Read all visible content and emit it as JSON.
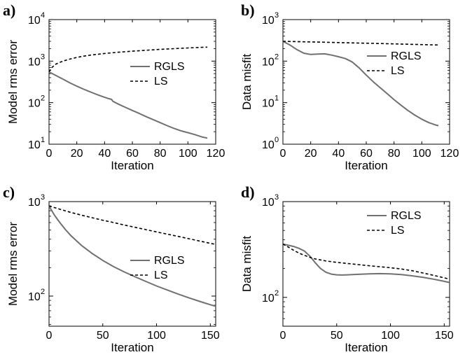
{
  "chart_data": [
    {
      "panel_label": "a)",
      "type": "line",
      "xlabel": "Iteration",
      "ylabel": "Model rms error",
      "xlim": [
        0,
        120
      ],
      "ylim": [
        10,
        10000
      ],
      "yscale": "log",
      "xticks": [
        0,
        20,
        40,
        60,
        80,
        100,
        120
      ],
      "yticks": [
        {
          "v": 10,
          "base": "10",
          "exp": "1"
        },
        {
          "v": 100,
          "base": "10",
          "exp": "2"
        },
        {
          "v": 1000,
          "base": "10",
          "exp": "3"
        },
        {
          "v": 10000,
          "base": "10",
          "exp": "4"
        }
      ],
      "legend": "right",
      "series": [
        {
          "name": "RGLS",
          "style": "solid",
          "color": "#707070",
          "x": [
            0,
            5,
            10,
            15,
            20,
            25,
            30,
            35,
            40,
            43,
            45,
            46,
            50,
            55,
            60,
            65,
            70,
            75,
            80,
            85,
            90,
            95,
            100,
            105,
            110,
            114
          ],
          "y": [
            550,
            450,
            370,
            300,
            250,
            210,
            180,
            155,
            135,
            125,
            120,
            108,
            92,
            77,
            65,
            55,
            46,
            39,
            33,
            28,
            24,
            21,
            19,
            17,
            15,
            14
          ]
        },
        {
          "name": "LS",
          "style": "dashed",
          "color": "#000000",
          "x": [
            0,
            2,
            5,
            10,
            15,
            20,
            25,
            30,
            40,
            50,
            60,
            70,
            80,
            90,
            100,
            110,
            114
          ],
          "y": [
            550,
            700,
            850,
            1000,
            1120,
            1230,
            1320,
            1400,
            1530,
            1640,
            1740,
            1830,
            1920,
            2000,
            2080,
            2150,
            2180
          ]
        }
      ]
    },
    {
      "panel_label": "b)",
      "type": "line",
      "xlabel": "Iteration",
      "ylabel": "Data misfit",
      "xlim": [
        0,
        120
      ],
      "ylim": [
        1,
        1000
      ],
      "yscale": "log",
      "xticks": [
        0,
        20,
        40,
        60,
        80,
        100,
        120
      ],
      "yticks": [
        {
          "v": 1,
          "base": "10",
          "exp": "0"
        },
        {
          "v": 10,
          "base": "10",
          "exp": "1"
        },
        {
          "v": 100,
          "base": "10",
          "exp": "2"
        },
        {
          "v": 1000,
          "base": "10",
          "exp": "3"
        }
      ],
      "legend": "right",
      "series": [
        {
          "name": "RGLS",
          "style": "solid",
          "color": "#707070",
          "x": [
            0,
            5,
            10,
            15,
            20,
            25,
            30,
            35,
            40,
            45,
            50,
            55,
            60,
            65,
            70,
            75,
            80,
            85,
            90,
            95,
            100,
            105,
            110,
            112
          ],
          "y": [
            300,
            245,
            190,
            155,
            145,
            148,
            150,
            140,
            128,
            115,
            95,
            68,
            46,
            32,
            23,
            16.5,
            11.8,
            8.7,
            6.5,
            5.0,
            4.0,
            3.3,
            2.9,
            2.8
          ]
        },
        {
          "name": "LS",
          "style": "dashed",
          "color": "#000000",
          "x": [
            0,
            10,
            20,
            30,
            40,
            50,
            60,
            70,
            80,
            90,
            100,
            110,
            112
          ],
          "y": [
            300,
            295,
            290,
            285,
            280,
            275,
            270,
            265,
            260,
            255,
            250,
            245,
            245
          ]
        }
      ]
    },
    {
      "panel_label": "c)",
      "type": "line",
      "xlabel": "Iteration",
      "ylabel": "Model rms error",
      "xlim": [
        0,
        155
      ],
      "ylim": [
        48,
        1000
      ],
      "yscale": "log",
      "xticks": [
        0,
        50,
        100,
        150
      ],
      "yticks": [
        {
          "v": 100,
          "base": "10",
          "exp": "2"
        },
        {
          "v": 1000,
          "base": "10",
          "exp": "3"
        }
      ],
      "legend": "right",
      "series": [
        {
          "name": "RGLS",
          "style": "solid",
          "color": "#707070",
          "x": [
            0,
            5,
            10,
            15,
            20,
            30,
            40,
            50,
            60,
            70,
            80,
            90,
            100,
            110,
            120,
            130,
            140,
            150,
            155
          ],
          "y": [
            900,
            720,
            600,
            510,
            440,
            345,
            283,
            238,
            205,
            180,
            160,
            143,
            128,
            116,
            105,
            96,
            88,
            81,
            78
          ]
        },
        {
          "name": "LS",
          "style": "dashed",
          "color": "#000000",
          "x": [
            0,
            10,
            20,
            30,
            40,
            50,
            60,
            70,
            80,
            90,
            100,
            110,
            120,
            130,
            140,
            150,
            155
          ],
          "y": [
            900,
            830,
            770,
            720,
            675,
            635,
            600,
            565,
            535,
            505,
            478,
            452,
            428,
            405,
            383,
            362,
            352
          ]
        }
      ]
    },
    {
      "panel_label": "d)",
      "type": "line",
      "xlabel": "Iteration",
      "ylabel": "Data misfit",
      "xlim": [
        0,
        155
      ],
      "ylim": [
        50,
        1000
      ],
      "yscale": "log",
      "xticks": [
        0,
        50,
        100,
        150
      ],
      "yticks": [
        {
          "v": 100,
          "base": "10",
          "exp": "2"
        },
        {
          "v": 1000,
          "base": "10",
          "exp": "3"
        }
      ],
      "legend": "top-right",
      "series": [
        {
          "name": "RGLS",
          "style": "solid",
          "color": "#707070",
          "x": [
            0,
            5,
            10,
            15,
            20,
            25,
            30,
            35,
            40,
            45,
            50,
            55,
            60,
            70,
            80,
            90,
            100,
            110,
            120,
            130,
            140,
            150,
            155
          ],
          "y": [
            360,
            350,
            340,
            325,
            305,
            270,
            230,
            200,
            183,
            175,
            172,
            171,
            172,
            174,
            176,
            177,
            176,
            173,
            168,
            162,
            155,
            147,
            143
          ]
        },
        {
          "name": "LS",
          "style": "dashed",
          "color": "#000000",
          "x": [
            0,
            5,
            10,
            15,
            20,
            25,
            30,
            40,
            50,
            60,
            70,
            80,
            90,
            100,
            110,
            120,
            130,
            140,
            150,
            155
          ],
          "y": [
            360,
            335,
            310,
            290,
            275,
            262,
            252,
            240,
            232,
            226,
            220,
            214,
            209,
            204,
            198,
            190,
            180,
            170,
            160,
            155
          ]
        }
      ]
    }
  ]
}
